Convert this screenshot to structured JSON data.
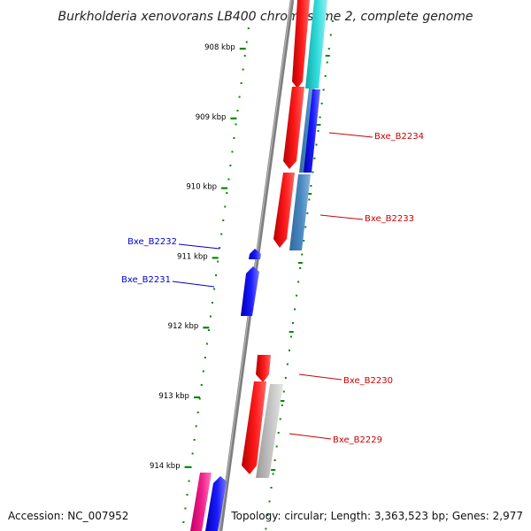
{
  "title": "Burkholderia xenovorans LB400 chromosome 2, complete genome",
  "footer": {
    "accession": "Accession: NC_007952",
    "topology": "Topology: circular; Length: 3,363,523 bp; Genes: 2,977"
  },
  "ruler": {
    "ticks": [
      {
        "label": "908 kbp",
        "kbp": 908
      },
      {
        "label": "909 kbp",
        "kbp": 909
      },
      {
        "label": "910 kbp",
        "kbp": 910
      },
      {
        "label": "911 kbp",
        "kbp": 911
      },
      {
        "label": "912 kbp",
        "kbp": 912
      },
      {
        "label": "913 kbp",
        "kbp": 913
      },
      {
        "label": "914 kbp",
        "kbp": 914
      }
    ]
  },
  "genes": [
    {
      "label": "Bxe_B2234",
      "strand": "plus",
      "color": "#cc0000"
    },
    {
      "label": "Bxe_B2233",
      "strand": "plus",
      "color": "#cc0000"
    },
    {
      "label": "Bxe_B2232",
      "strand": "minus",
      "color": "#0000cc"
    },
    {
      "label": "Bxe_B2231",
      "strand": "minus",
      "color": "#0000cc"
    },
    {
      "label": "Bxe_B2230",
      "strand": "plus",
      "color": "#cc0000"
    },
    {
      "label": "Bxe_B2229",
      "strand": "plus",
      "color": "#cc0000"
    }
  ],
  "colors": {
    "forward_gene": "#ff0000",
    "reverse_gene": "#0000ff",
    "rna_feature": "#4682b4",
    "cyan_feature": "#22cccc",
    "gray_feature": "#bbbbbb",
    "pink_feature": "#ee1188",
    "backbone": "#888888",
    "ticks": "#008800"
  }
}
